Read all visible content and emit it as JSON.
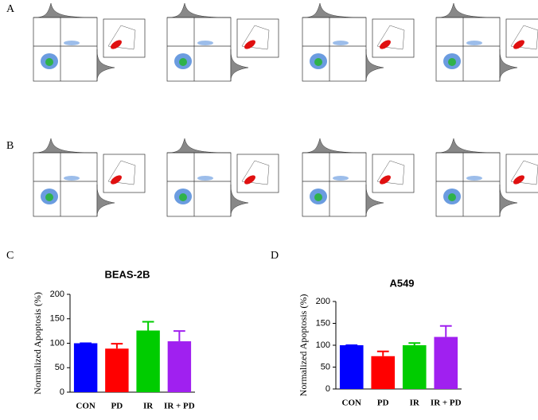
{
  "panel_labels": [
    "A",
    "B",
    "C",
    "D"
  ],
  "chart_data": [
    {
      "type": "bar",
      "title": "BEAS-2B",
      "y_label": "Normalized Apoptosis (%)",
      "categories": [
        "CON",
        "PD",
        "IR",
        "IR + PD"
      ],
      "values": [
        100,
        89,
        126,
        104
      ],
      "errors": [
        0,
        10,
        18,
        21
      ],
      "colors": [
        "#0000ff",
        "#ff0000",
        "#00cc00",
        "#a020f0"
      ],
      "ylim": [
        0,
        200
      ],
      "yticks": [
        0,
        50,
        100,
        150,
        200
      ]
    },
    {
      "type": "bar",
      "title": "A549",
      "y_label": "Normalized Apoptosis (%)",
      "categories": [
        "CON",
        "PD",
        "IR",
        "IR + PD"
      ],
      "values": [
        100,
        75,
        100,
        119
      ],
      "errors": [
        0,
        11,
        5,
        25
      ],
      "colors": [
        "#0000ff",
        "#ff0000",
        "#00cc00",
        "#a020f0"
      ],
      "ylim": [
        0,
        200
      ],
      "yticks": [
        0,
        50,
        100,
        150,
        200
      ]
    }
  ]
}
